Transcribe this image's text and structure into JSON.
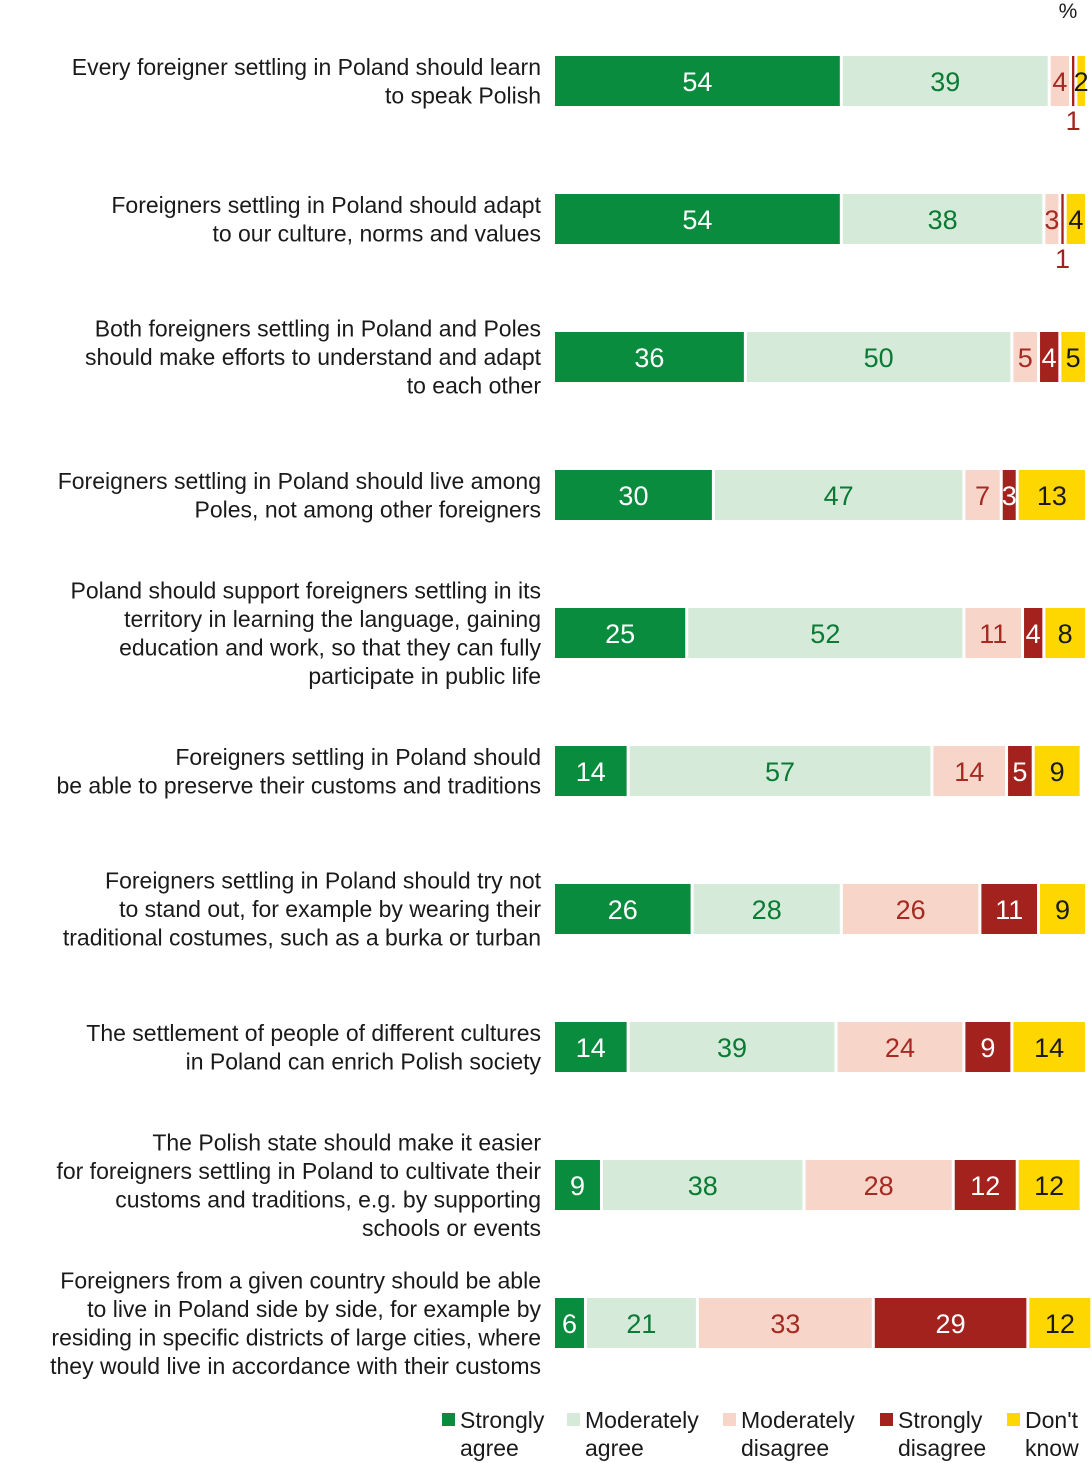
{
  "chart_data": {
    "type": "bar",
    "orientation": "horizontal",
    "stacked": true,
    "unit": "%",
    "categories": [
      [
        "Every foreigner settling in Poland should learn",
        "to speak Polish"
      ],
      [
        "Foreigners settling in Poland should adapt",
        "to our culture, norms and values"
      ],
      [
        "Both foreigners settling in Poland and Poles",
        "should make efforts to understand and adapt",
        "to each other"
      ],
      [
        "Foreigners settling in Poland should live among",
        "Poles, not among other foreigners"
      ],
      [
        "Poland should support foreigners settling in its",
        "territory in learning the language, gaining",
        "education and work, so that they can fully",
        "participate in public life"
      ],
      [
        "Foreigners settling in Poland should",
        "be able to preserve their customs and traditions"
      ],
      [
        "Foreigners settling in Poland should try not",
        "to stand out, for example by wearing their",
        "traditional costumes, such as a burka or turban"
      ],
      [
        "The settlement of people of different cultures",
        "in Poland can enrich Polish society"
      ],
      [
        "The Polish state should make it easier",
        "for foreigners settling in Poland to cultivate their",
        "customs and traditions, e.g. by supporting",
        "schools or events"
      ],
      [
        "Foreigners from a given country should be able",
        "to live in Poland side by side, for example by",
        "residing in specific districts of large cities, where",
        "they would live in accordance with their customs"
      ]
    ],
    "series": [
      {
        "name": "Strongly agree",
        "legend_lines": [
          "Strongly",
          "agree"
        ],
        "color": "#0a8c3f",
        "text_color": "#ffffff",
        "values": [
          54,
          54,
          36,
          30,
          25,
          14,
          26,
          14,
          9,
          6
        ]
      },
      {
        "name": "Moderately agree",
        "legend_lines": [
          "Moderately",
          "agree"
        ],
        "color": "#d5ead9",
        "text_color": "#0a7a35",
        "values": [
          39,
          38,
          50,
          47,
          52,
          57,
          28,
          39,
          38,
          21
        ]
      },
      {
        "name": "Moderately disagree",
        "legend_lines": [
          "Moderately",
          "disagree"
        ],
        "color": "#f8d5c9",
        "text_color": "#a52a22",
        "values": [
          4,
          3,
          5,
          7,
          11,
          14,
          26,
          24,
          28,
          33
        ]
      },
      {
        "name": "Strongly disagree",
        "legend_lines": [
          "Strongly",
          "disagree"
        ],
        "color": "#a3221d",
        "text_color": "#ffffff",
        "values": [
          1,
          1,
          4,
          3,
          4,
          5,
          11,
          9,
          12,
          29
        ]
      },
      {
        "name": "Don't know",
        "legend_lines": [
          "Don't",
          "know"
        ],
        "color": "#ffd700",
        "text_color": "#1a1a1a",
        "values": [
          2,
          4,
          5,
          13,
          8,
          9,
          9,
          14,
          12,
          12
        ]
      }
    ],
    "xlim": [
      0,
      100
    ],
    "legend_position": "bottom-right"
  }
}
